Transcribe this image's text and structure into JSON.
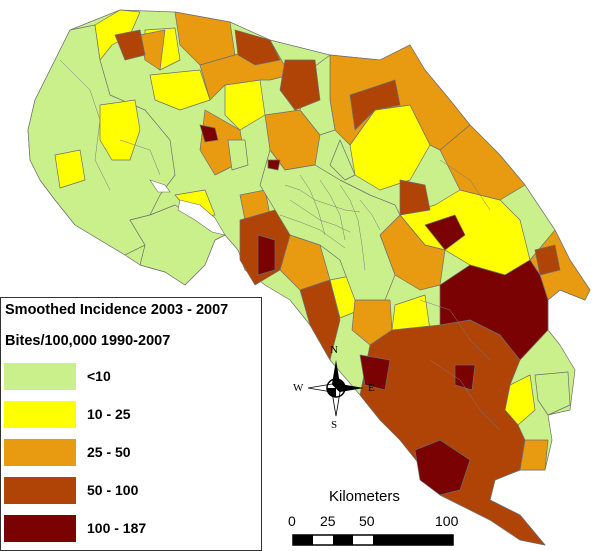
{
  "legend": {
    "title1": "Smoothed Incidence 2003 - 2007",
    "title2": "Bites/100,000 1990-2007",
    "classes": [
      {
        "label": "<10",
        "color": "#c9f08a"
      },
      {
        "label": "10 - 25",
        "color": "#ffff00"
      },
      {
        "label": "25 - 50",
        "color": "#e89a10"
      },
      {
        "label": "50 - 100",
        "color": "#b04406"
      },
      {
        "label": "100 - 187",
        "color": "#7a0202"
      }
    ]
  },
  "compass": {
    "north": "N",
    "south": "S",
    "east": "E",
    "west": "W"
  },
  "scale": {
    "title": "Kilometers",
    "ticks": [
      "0",
      "25",
      "50",
      "100"
    ]
  }
}
